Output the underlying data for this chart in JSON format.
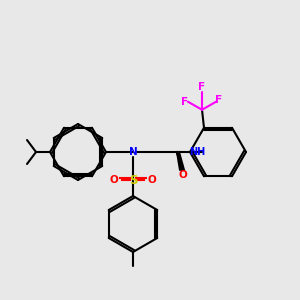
{
  "background_color": "#e8e8e8",
  "figsize": [
    3.0,
    3.0
  ],
  "dpi": 100,
  "lw": 1.5,
  "colors": {
    "C": "#000000",
    "N": "#0000FF",
    "O": "#FF0000",
    "S": "#CCCC00",
    "F": "#FF00FF",
    "H": "#008080"
  },
  "fontsize": 7.5
}
